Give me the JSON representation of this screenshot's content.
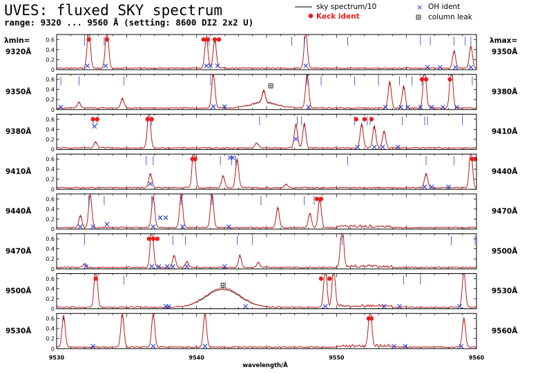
{
  "header": {
    "title": "UVES: fluxed SKY spectrum",
    "subtitle": "range: 9320 ... 9560 Å (setting: 8600 DI2 2x2 U)"
  },
  "legend": {
    "sky": "sky spectrum/10",
    "keck": "Keck ident",
    "oh": "OH ident",
    "leak": "column leak"
  },
  "left_header": "λmin=",
  "right_header": "λmax=",
  "xlabel": "wavelength/Å",
  "colors": {
    "sky_red": "#e8201c",
    "sky_black": "#000000",
    "keck": "#e8201c",
    "oh": "#1f38d8",
    "tick_blue": "#1f38d8"
  },
  "chart_data": {
    "type": "line",
    "ylim": [
      0,
      0.7
    ],
    "yticks": [
      "0",
      "0.2",
      "0.4",
      "0.6"
    ],
    "panel_width_A": 30,
    "panels": [
      {
        "min_label": "9320Å",
        "max_label": "9350Å",
        "start": 9320,
        "lines": [
          [
            9322.3,
            0.9
          ],
          [
            9323.6,
            0.9
          ],
          [
            9330.7,
            0.65
          ],
          [
            9331.3,
            0.6
          ],
          [
            9337.8,
            0.8
          ],
          [
            9348.4,
            0.35
          ],
          [
            9349.6,
            0.45
          ]
        ],
        "keck": [
          [
            9322.3,
            0.6
          ],
          [
            9323.6,
            0.6
          ],
          [
            9330.5,
            0.6
          ],
          [
            9330.8,
            0.6
          ],
          [
            9331.3,
            0.6
          ],
          [
            9331.6,
            0.6
          ]
        ],
        "oh": [
          [
            9322.2,
            0.05
          ],
          [
            9323.5,
            0.05
          ],
          [
            9330.7,
            0.05
          ],
          [
            9331.0,
            0.05
          ],
          [
            9331.5,
            0.05
          ],
          [
            9337.8,
            0.05
          ],
          [
            9346.5,
            0.02
          ],
          [
            9347.4,
            0.02
          ],
          [
            9348.5,
            0.02
          ],
          [
            9349.6,
            0.02
          ]
        ],
        "ticks": [
          9322.0,
          9323.4,
          9330.9,
          9336.8,
          9337.7,
          9340.8,
          9346.0,
          9346.7,
          9348.4,
          9349.2,
          9349.6
        ],
        "leak": []
      },
      {
        "min_label": "9350Å",
        "max_label": "9380Å",
        "start": 9350,
        "lines": [
          [
            9351.6,
            0.12
          ],
          [
            9354.7,
            0.2
          ],
          [
            9361.2,
            0.75
          ],
          [
            9364.8,
            0.25
          ],
          [
            9367.9,
            0.72
          ],
          [
            9373.8,
            0.55
          ],
          [
            9374.8,
            0.45
          ],
          [
            9376.3,
            0.9
          ],
          [
            9378.2,
            0.88
          ]
        ],
        "keck": [
          [
            9376.1,
            0.6
          ],
          [
            9376.4,
            0.6
          ],
          [
            9378.1,
            0.6
          ]
        ],
        "oh": [
          [
            9350.3,
            0.02
          ],
          [
            9361.2,
            0.03
          ],
          [
            9362.0,
            0.03
          ],
          [
            9368.0,
            0.02
          ],
          [
            9373.5,
            0.02
          ],
          [
            9374.6,
            0.02
          ],
          [
            9375.1,
            0.02
          ],
          [
            9376.0,
            0.02
          ],
          [
            9376.8,
            0.02
          ],
          [
            9377.6,
            0.02
          ],
          [
            9378.6,
            0.02
          ]
        ],
        "ticks": [
          9350.3,
          9351.6,
          9354.8,
          9361.0,
          9367.9,
          9368.9,
          9371.3,
          9373.0,
          9374.5,
          9375.4,
          9376.1,
          9379.7
        ],
        "leak": [
          [
            9365.3,
            0.47
          ]
        ],
        "hump": [
          9364.8,
          0.12,
          0.9
        ]
      },
      {
        "min_label": "9380Å",
        "max_label": "9410Å",
        "start": 9380,
        "lines": [
          [
            9382.8,
            0.12
          ],
          [
            9386.6,
            0.8
          ],
          [
            9394.3,
            0.1
          ],
          [
            9397.1,
            0.5
          ],
          [
            9397.7,
            0.5
          ],
          [
            9401.8,
            0.5
          ],
          [
            9402.7,
            0.45
          ],
          [
            9403.4,
            0.35
          ]
        ],
        "keck": [
          [
            9382.6,
            0.6
          ],
          [
            9382.9,
            0.6
          ],
          [
            9386.5,
            0.6
          ],
          [
            9386.8,
            0.6
          ],
          [
            9401.4,
            0.6
          ],
          [
            9402.0,
            0.6
          ],
          [
            9402.5,
            0.6
          ]
        ],
        "oh": [
          [
            9382.7,
            0.43
          ],
          [
            9397.1,
            0.18
          ],
          [
            9401.5,
            0.02
          ],
          [
            9402.7,
            0.02
          ],
          [
            9403.3,
            0.02
          ],
          [
            9404.4,
            0.02
          ]
        ],
        "ticks": [
          9382.6,
          9382.9,
          9386.5,
          9386.8,
          9394.5,
          9397.2,
          9397.5,
          9401.3,
          9402.2,
          9402.4,
          9404.7,
          9406.3,
          9406.5,
          9409.0
        ],
        "leak": []
      },
      {
        "min_label": "9410Å",
        "max_label": "9440Å",
        "start": 9410,
        "lines": [
          [
            9416.7,
            0.3
          ],
          [
            9419.8,
            0.85
          ],
          [
            9421.9,
            0.25
          ],
          [
            9422.9,
            0.6
          ],
          [
            9426.4,
            0.08
          ],
          [
            9436.4,
            0.3
          ],
          [
            9439.6,
            0.85
          ]
        ],
        "keck": [
          [
            9419.7,
            0.6
          ],
          [
            9419.9,
            0.6
          ],
          [
            9439.7,
            0.6
          ],
          [
            9439.9,
            0.6
          ]
        ],
        "oh": [
          [
            9416.7,
            0.08
          ],
          [
            9422.4,
            0.6
          ],
          [
            9422.6,
            0.6
          ],
          [
            9436.3,
            0.02
          ],
          [
            9436.8,
            0.02
          ],
          [
            9438.0,
            0.02
          ]
        ],
        "ticks": [
          9416.4,
          9416.9,
          9421.7,
          9422.5,
          9422.8,
          9430.8,
          9436.4,
          9438.4
        ],
        "leak": []
      },
      {
        "min_label": "9440Å",
        "max_label": "9470Å",
        "start": 9440,
        "lines": [
          [
            9441.7,
            0.25
          ],
          [
            9442.4,
            0.7
          ],
          [
            9446.9,
            0.65
          ],
          [
            9448.9,
            0.72
          ],
          [
            9451.1,
            0.72
          ],
          [
            9455.8,
            0.42
          ],
          [
            9458.1,
            0.3
          ],
          [
            9458.8,
            0.6
          ]
        ],
        "keck": [
          [
            9458.6,
            0.6
          ],
          [
            9458.9,
            0.6
          ]
        ],
        "oh": [
          [
            9441.7,
            0.02
          ],
          [
            9442.6,
            0.02
          ],
          [
            9443.6,
            0.07
          ],
          [
            9446.9,
            0.02
          ],
          [
            9447.4,
            0.2
          ],
          [
            9447.8,
            0.2
          ],
          [
            9449.0,
            0.02
          ],
          [
            9452.3,
            0.02
          ]
        ],
        "ticks": [
          9442.3,
          9443.4,
          9446.8,
          9448.9,
          9451.1,
          9454.6,
          9457.7,
          9458.4
        ],
        "leak": []
      },
      {
        "min_label": "9470Å",
        "max_label": "9500Å",
        "start": 9470,
        "lines": [
          [
            9472.0,
            0.08
          ],
          [
            9476.8,
            0.9
          ],
          [
            9478.4,
            0.25
          ],
          [
            9479.3,
            0.12
          ],
          [
            9483.1,
            0.25
          ],
          [
            9484.4,
            0.1
          ],
          [
            9490.4,
            0.9
          ]
        ],
        "keck": [
          [
            9476.6,
            0.6
          ],
          [
            9476.9,
            0.6
          ],
          [
            9477.2,
            0.6
          ]
        ],
        "oh": [
          [
            9472.1,
            0.02
          ],
          [
            9476.8,
            0.02
          ],
          [
            9477.3,
            0.02
          ],
          [
            9477.9,
            0.02
          ],
          [
            9478.3,
            0.02
          ],
          [
            9479.3,
            0.02
          ],
          [
            9482.0,
            0.02
          ]
        ],
        "ticks": [
          9472.0,
          9478.3,
          9479.2,
          9482.9,
          9484.0,
          9490.4,
          9498.2,
          9499.9
        ],
        "leak": []
      },
      {
        "min_label": "9500Å",
        "max_label": "9530Å",
        "start": 9500,
        "lines": [
          [
            9502.8,
            0.9
          ],
          [
            9519.2,
            0.88
          ],
          [
            9519.8,
            0.88
          ],
          [
            9529.1,
            0.75
          ]
        ],
        "keck": [
          [
            9502.8,
            0.6
          ],
          [
            9518.9,
            0.6
          ],
          [
            9519.5,
            0.6
          ]
        ],
        "oh": [
          [
            9507.8,
            0.02
          ],
          [
            9508.0,
            0.02
          ],
          [
            9513.5,
            0.02
          ],
          [
            9519.2,
            0.02
          ],
          [
            9523.4,
            0.02
          ],
          [
            9524.5,
            0.02
          ],
          [
            9528.8,
            0.02
          ]
        ],
        "ticks": [
          9504.8,
          9524.8,
          9526.0
        ],
        "leak": [
          [
            9511.9,
            0.47
          ]
        ],
        "hump": [
          9511.9,
          0.38,
          1.2
        ]
      },
      {
        "min_label": "9530Å",
        "max_label": "9560Å",
        "start": 9530,
        "lines": [
          [
            9530.5,
            0.65
          ],
          [
            9534.7,
            0.7
          ],
          [
            9536.9,
            0.7
          ],
          [
            9540.6,
            0.72
          ],
          [
            9552.4,
            0.85
          ],
          [
            9559.1,
            0.62
          ]
        ],
        "keck": [
          [
            9552.3,
            0.6
          ],
          [
            9552.5,
            0.6
          ]
        ],
        "oh": [
          [
            9532.6,
            0.02
          ],
          [
            9536.9,
            0.02
          ],
          [
            9540.6,
            0.02
          ],
          [
            9554.1,
            0.02
          ],
          [
            9554.9,
            0.02
          ],
          [
            9558.9,
            0.02
          ]
        ],
        "ticks": [],
        "leak": []
      }
    ],
    "bottom_ticks": [
      {
        "value": 9530,
        "label": "9530"
      },
      {
        "value": 9540,
        "label": "9540"
      },
      {
        "value": 9550,
        "label": "9550"
      },
      {
        "value": 9560,
        "label": "9560"
      }
    ]
  }
}
